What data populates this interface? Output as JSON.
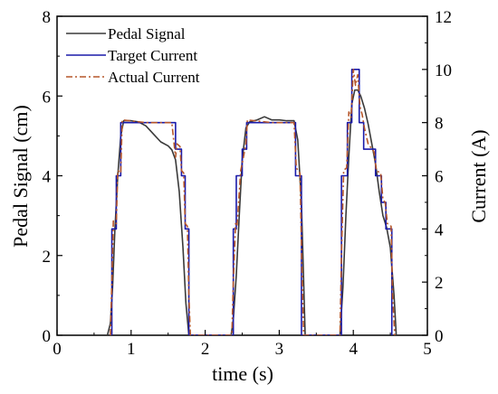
{
  "chart_data": {
    "type": "line",
    "xlabel": "time (s)",
    "ylabel_left": "Pedal Signal (cm)",
    "ylabel_right": "Current (A)",
    "xlim": [
      0,
      5
    ],
    "ylim_left": [
      0,
      8
    ],
    "ylim_right": [
      0,
      12
    ],
    "x_ticks": [
      "0",
      "1",
      "2",
      "3",
      "4",
      "5"
    ],
    "y_left_ticks": [
      "0",
      "2",
      "4",
      "6",
      "8"
    ],
    "y_right_ticks": [
      "0",
      "2",
      "4",
      "6",
      "8",
      "10",
      "12"
    ],
    "legend_position": "top-left",
    "grid": false,
    "series": [
      {
        "name": "Pedal Signal",
        "axis": "left",
        "color": "#3a3a3a",
        "style": "solid",
        "x": [
          0.68,
          0.72,
          0.75,
          0.78,
          0.82,
          0.86,
          0.9,
          1.0,
          1.1,
          1.2,
          1.3,
          1.4,
          1.5,
          1.55,
          1.6,
          1.65,
          1.7,
          1.74,
          1.78,
          2.35,
          2.38,
          2.42,
          2.46,
          2.5,
          2.55,
          2.6,
          2.7,
          2.8,
          2.9,
          3.0,
          3.1,
          3.2,
          3.25,
          3.3,
          3.35,
          3.82,
          3.86,
          3.9,
          3.94,
          3.98,
          4.02,
          4.06,
          4.1,
          4.15,
          4.2,
          4.25,
          4.3,
          4.35,
          4.4,
          4.45,
          4.5,
          4.55,
          4.58
        ],
        "values": [
          0,
          0.3,
          1.2,
          2.6,
          4.0,
          5.0,
          5.38,
          5.38,
          5.35,
          5.25,
          5.05,
          4.85,
          4.75,
          4.65,
          4.4,
          3.6,
          2.2,
          0.8,
          0,
          0,
          0.4,
          1.5,
          3.0,
          4.4,
          5.2,
          5.35,
          5.4,
          5.48,
          5.4,
          5.4,
          5.38,
          5.38,
          4.9,
          3.3,
          0,
          0,
          1.2,
          3.0,
          4.5,
          5.8,
          6.15,
          6.15,
          6.0,
          5.7,
          5.3,
          4.8,
          4.3,
          3.6,
          3.0,
          2.7,
          2.2,
          1.0,
          0
        ]
      },
      {
        "name": "Target Current",
        "axis": "right",
        "color": "#1a1aaa",
        "style": "solid",
        "x": [
          0.74,
          0.74,
          0.8,
          0.8,
          0.86,
          0.86,
          1.6,
          1.6,
          1.68,
          1.68,
          1.73,
          1.73,
          1.78,
          1.78,
          2.38,
          2.38,
          2.42,
          2.42,
          2.5,
          2.5,
          2.56,
          2.56,
          3.22,
          3.22,
          3.3,
          3.3,
          3.84,
          3.84,
          3.92,
          3.92,
          3.98,
          3.98,
          4.08,
          4.08,
          4.14,
          4.14,
          4.3,
          4.3,
          4.38,
          4.38,
          4.44,
          4.44,
          4.52,
          4.52
        ],
        "values": [
          0,
          4,
          4,
          6,
          6,
          8,
          8,
          7,
          7,
          6,
          6,
          4,
          4,
          0,
          0,
          4,
          4,
          6,
          6,
          7,
          7,
          8,
          8,
          6,
          6,
          0,
          0,
          6,
          6,
          8,
          8,
          10,
          10,
          8,
          8,
          7,
          7,
          6,
          6,
          5,
          5,
          4,
          4,
          0
        ]
      },
      {
        "name": "Actual Current",
        "axis": "right",
        "color": "#b5562a",
        "style": "dashdot",
        "x": [
          0.72,
          0.74,
          0.76,
          0.8,
          0.82,
          0.86,
          0.88,
          1.2,
          1.55,
          1.58,
          1.6,
          1.62,
          1.66,
          1.68,
          1.71,
          1.73,
          1.76,
          1.78,
          1.8,
          2.36,
          2.38,
          2.41,
          2.43,
          2.48,
          2.51,
          2.55,
          2.57,
          2.9,
          3.2,
          3.23,
          3.28,
          3.31,
          3.33,
          3.82,
          3.84,
          3.87,
          3.91,
          3.94,
          3.97,
          4.0,
          4.03,
          4.06,
          4.09,
          4.12,
          4.15,
          4.2,
          4.28,
          4.31,
          4.37,
          4.4,
          4.43,
          4.46,
          4.51,
          4.53,
          4.56
        ],
        "values": [
          0,
          2,
          4.3,
          4.2,
          6.2,
          6.1,
          8.1,
          8.0,
          8.0,
          7.2,
          6.7,
          7.2,
          7.1,
          6.2,
          6.1,
          4.2,
          4.1,
          1.5,
          0,
          0,
          2,
          4.2,
          4.1,
          6.2,
          6.6,
          7.2,
          8.1,
          8.0,
          8.0,
          6.3,
          6.1,
          2,
          0,
          0,
          3,
          6.2,
          6.3,
          8.4,
          8.2,
          10.0,
          9.4,
          9.8,
          8.6,
          8.3,
          7.8,
          7.2,
          6.9,
          6.2,
          6.1,
          5.1,
          5.0,
          4.2,
          4.1,
          1.5,
          0
        ]
      }
    ]
  }
}
